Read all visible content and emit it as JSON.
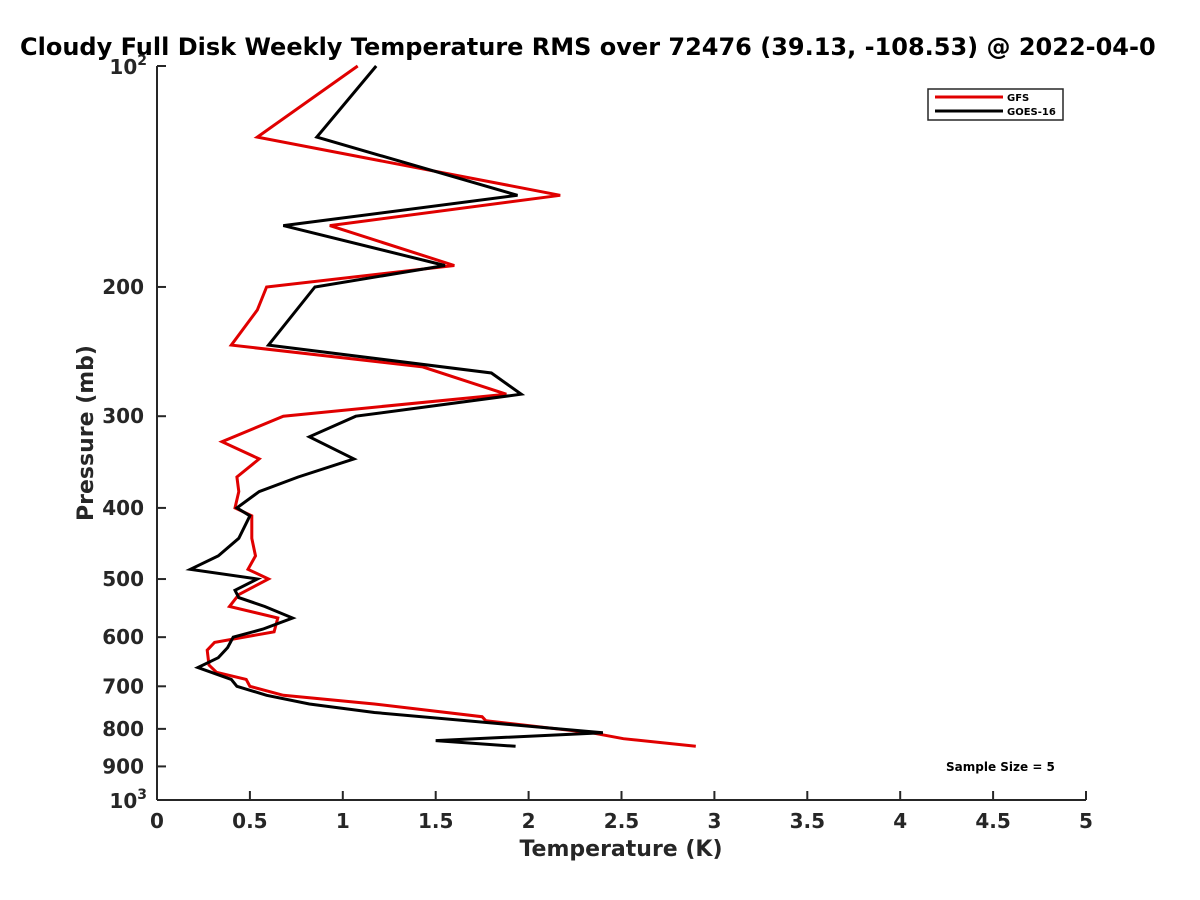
{
  "chart_data": {
    "type": "line",
    "title": "Cloudy Full Disk Weekly Temperature RMS over 72476 (39.13, -108.53) @ 2022-04-0",
    "xlabel": "Temperature (K)",
    "ylabel": "Pressure (mb)",
    "xlim": [
      0,
      5
    ],
    "ylim": [
      100,
      1000
    ],
    "yscale": "log",
    "y_reversed": true,
    "grid": false,
    "legend_position": "top-right",
    "x_ticks": [
      "0",
      "0.5",
      "1",
      "1.5",
      "2",
      "2.5",
      "3",
      "3.5",
      "4",
      "4.5",
      "5"
    ],
    "y_ticks": [
      {
        "value": 100,
        "base": "10",
        "exp": "2"
      },
      {
        "value": 200,
        "label": "200"
      },
      {
        "value": 300,
        "label": "300"
      },
      {
        "value": 400,
        "label": "400"
      },
      {
        "value": 500,
        "label": "500"
      },
      {
        "value": 600,
        "label": "600"
      },
      {
        "value": 700,
        "label": "700"
      },
      {
        "value": 800,
        "label": "800"
      },
      {
        "value": 900,
        "label": "900"
      },
      {
        "value": 1000,
        "base": "10",
        "exp": "3"
      }
    ],
    "series": [
      {
        "name": "GFS",
        "color": "#e00000",
        "points": [
          [
            1.08,
            100
          ],
          [
            0.54,
            125
          ],
          [
            2.17,
            150
          ],
          [
            0.93,
            165
          ],
          [
            1.6,
            187
          ],
          [
            0.59,
            200
          ],
          [
            0.54,
            215
          ],
          [
            0.4,
            240
          ],
          [
            1.43,
            257
          ],
          [
            1.88,
            280
          ],
          [
            0.68,
            300
          ],
          [
            0.35,
            325
          ],
          [
            0.55,
            343
          ],
          [
            0.43,
            363
          ],
          [
            0.44,
            380
          ],
          [
            0.42,
            400
          ],
          [
            0.51,
            410
          ],
          [
            0.51,
            440
          ],
          [
            0.53,
            465
          ],
          [
            0.49,
            485
          ],
          [
            0.6,
            500
          ],
          [
            0.44,
            525
          ],
          [
            0.39,
            545
          ],
          [
            0.65,
            565
          ],
          [
            0.63,
            590
          ],
          [
            0.31,
            610
          ],
          [
            0.27,
            625
          ],
          [
            0.28,
            655
          ],
          [
            0.32,
            670
          ],
          [
            0.48,
            685
          ],
          [
            0.5,
            700
          ],
          [
            0.68,
            720
          ],
          [
            1.17,
            740
          ],
          [
            1.75,
            770
          ],
          [
            1.77,
            780
          ],
          [
            2.34,
            810
          ],
          [
            2.51,
            825
          ],
          [
            2.9,
            845
          ]
        ]
      },
      {
        "name": "GOES-16",
        "color": "#000000",
        "points": [
          [
            1.18,
            100
          ],
          [
            0.86,
            125
          ],
          [
            1.94,
            150
          ],
          [
            0.68,
            165
          ],
          [
            1.55,
            187
          ],
          [
            0.85,
            200
          ],
          [
            0.6,
            240
          ],
          [
            1.8,
            262
          ],
          [
            1.96,
            280
          ],
          [
            1.07,
            300
          ],
          [
            0.82,
            320
          ],
          [
            1.06,
            343
          ],
          [
            0.76,
            363
          ],
          [
            0.55,
            380
          ],
          [
            0.43,
            400
          ],
          [
            0.5,
            410
          ],
          [
            0.44,
            440
          ],
          [
            0.33,
            465
          ],
          [
            0.18,
            485
          ],
          [
            0.54,
            500
          ],
          [
            0.42,
            518
          ],
          [
            0.44,
            530
          ],
          [
            0.58,
            545
          ],
          [
            0.73,
            565
          ],
          [
            0.57,
            585
          ],
          [
            0.41,
            600
          ],
          [
            0.38,
            620
          ],
          [
            0.33,
            640
          ],
          [
            0.22,
            660
          ],
          [
            0.4,
            685
          ],
          [
            0.43,
            700
          ],
          [
            0.59,
            720
          ],
          [
            0.82,
            740
          ],
          [
            1.17,
            760
          ],
          [
            2.4,
            810
          ],
          [
            1.5,
            830
          ],
          [
            1.93,
            845
          ]
        ]
      }
    ],
    "legend": [
      "GFS",
      "GOES-16"
    ],
    "annotation": "Sample Size = 5"
  }
}
